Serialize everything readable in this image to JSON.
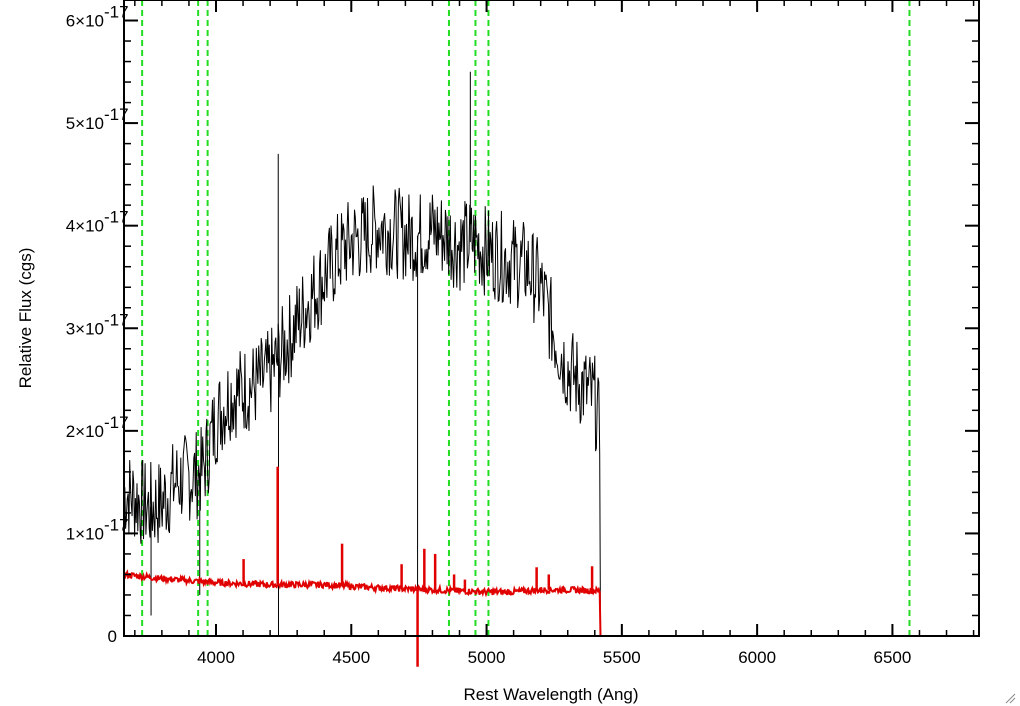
{
  "chart_data": {
    "type": "line",
    "title": "",
    "xlabel": "Rest Wavelength (Ang)",
    "ylabel": "Relative Flux (cgs)",
    "xlim": [
      3660,
      6820
    ],
    "ylim": [
      0,
      6.2e-17
    ],
    "x_ticks": [
      {
        "value": 4000,
        "label": "4000"
      },
      {
        "value": 4500,
        "label": "4500"
      },
      {
        "value": 5000,
        "label": "5000"
      },
      {
        "value": 5500,
        "label": "5500"
      },
      {
        "value": 6000,
        "label": "6000"
      },
      {
        "value": 6500,
        "label": "6500"
      }
    ],
    "y_ticks": [
      {
        "value": 0,
        "mantissa": "0",
        "exponent": ""
      },
      {
        "value": 1e-17,
        "mantissa": "1×10",
        "exponent": "-17"
      },
      {
        "value": 2e-17,
        "mantissa": "2×10",
        "exponent": "-17"
      },
      {
        "value": 3e-17,
        "mantissa": "3×10",
        "exponent": "-17"
      },
      {
        "value": 4e-17,
        "mantissa": "4×10",
        "exponent": "-17"
      },
      {
        "value": 5e-17,
        "mantissa": "5×10",
        "exponent": "-17"
      },
      {
        "value": 6e-17,
        "mantissa": "6×10",
        "exponent": "-17"
      }
    ],
    "vertical_lines": [
      3727,
      3934,
      3969,
      4861,
      4959,
      5007,
      6563
    ],
    "series": [
      {
        "color": "#000000",
        "x": [
          3660,
          3700,
          3750,
          3800,
          3850,
          3900,
          3950,
          4000,
          4050,
          4100,
          4150,
          4200,
          4250,
          4300,
          4350,
          4400,
          4450,
          4500,
          4550,
          4600,
          4650,
          4700,
          4750,
          4800,
          4850,
          4900,
          4950,
          5000,
          5050,
          5100,
          5150,
          5200,
          5250,
          5300,
          5350,
          5400,
          5420,
          5421,
          6820
        ],
        "y": [
          1.4e-17,
          1.35e-17,
          1.25e-17,
          1.3e-17,
          1.5e-17,
          1.55e-17,
          1.6e-17,
          2.1e-17,
          2.35e-17,
          2.4e-17,
          2.45e-17,
          2.55e-17,
          2.8e-17,
          3.05e-17,
          3.3e-17,
          3.5e-17,
          3.7e-17,
          3.85e-17,
          3.9e-17,
          4e-17,
          3.95e-17,
          3.9e-17,
          3.9e-17,
          3.95e-17,
          3.9e-17,
          3.8e-17,
          3.85e-17,
          3.75e-17,
          3.7e-17,
          3.65e-17,
          3.6e-17,
          3.4e-17,
          2.95e-17,
          2.6e-17,
          2.45e-17,
          2.3e-17,
          1.95e-17,
          0,
          0
        ],
        "noise": 4.5e-18,
        "spikes": [
          {
            "x": 4230,
            "y": 4.7e-17
          },
          {
            "x": 4231,
            "y": 0
          },
          {
            "x": 4745,
            "y": 0
          },
          {
            "x": 4940,
            "y": 5.5e-17
          },
          {
            "x": 3760,
            "y": 2e-18
          },
          {
            "x": 3940,
            "y": 4e-18
          }
        ]
      },
      {
        "color": "#e00000",
        "x": [
          3660,
          3800,
          4000,
          4200,
          4400,
          4600,
          4800,
          5000,
          5100,
          5200,
          5300,
          5420,
          5421,
          6820
        ],
        "y": [
          6e-18,
          5.6e-18,
          5.2e-18,
          5e-18,
          5e-18,
          4.7e-18,
          4.5e-18,
          4.3e-18,
          4.3e-18,
          4.5e-18,
          4.5e-18,
          4.4e-18,
          0,
          0
        ],
        "noise": 3e-19,
        "spikes": [
          {
            "x": 4102,
            "y": 7.5e-18
          },
          {
            "x": 4228,
            "y": 1.65e-17
          },
          {
            "x": 4466,
            "y": 9e-18
          },
          {
            "x": 4686,
            "y": 7e-18
          },
          {
            "x": 4745,
            "y": -3e-18
          },
          {
            "x": 4770,
            "y": 8.5e-18
          },
          {
            "x": 4810,
            "y": 8e-18
          },
          {
            "x": 4880,
            "y": 6e-18
          },
          {
            "x": 4920,
            "y": 5.5e-18
          },
          {
            "x": 5185,
            "y": 6.7e-18
          },
          {
            "x": 5230,
            "y": 6e-18
          },
          {
            "x": 5390,
            "y": 6.8e-18
          }
        ]
      }
    ]
  }
}
